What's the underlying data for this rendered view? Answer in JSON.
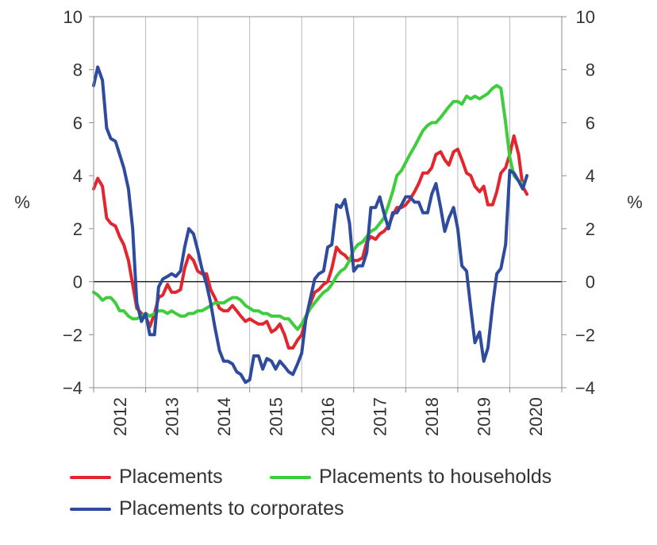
{
  "chart_data": {
    "type": "line",
    "unit_left": "%",
    "unit_right": "%",
    "ylim": [
      -4,
      10
    ],
    "yticks": [
      -4,
      -2,
      0,
      2,
      4,
      6,
      8,
      10
    ],
    "ytick_labels": [
      "−4",
      "−2",
      "0",
      "2",
      "4",
      "6",
      "8",
      "10"
    ],
    "xlim": [
      2011.5,
      2020.5
    ],
    "year_labels": [
      "2012",
      "2013",
      "2014",
      "2015",
      "2016",
      "2017",
      "2018",
      "2019",
      "2020"
    ],
    "grid_vertical": true,
    "zero_line": true,
    "legend_position": "bottom",
    "series": [
      {
        "name": "Placements",
        "color": "#e3262e",
        "points": [
          [
            2011.5,
            3.5
          ],
          [
            2011.58,
            3.9
          ],
          [
            2011.67,
            3.6
          ],
          [
            2011.75,
            2.4
          ],
          [
            2011.83,
            2.2
          ],
          [
            2011.92,
            2.1
          ],
          [
            2012.0,
            1.7
          ],
          [
            2012.08,
            1.4
          ],
          [
            2012.17,
            0.8
          ],
          [
            2012.25,
            -0.1
          ],
          [
            2012.33,
            -1.0
          ],
          [
            2012.42,
            -1.2
          ],
          [
            2012.5,
            -1.3
          ],
          [
            2012.58,
            -1.7
          ],
          [
            2012.67,
            -1.2
          ],
          [
            2012.75,
            -0.6
          ],
          [
            2012.83,
            -0.5
          ],
          [
            2012.92,
            -0.1
          ],
          [
            2013.0,
            -0.4
          ],
          [
            2013.08,
            -0.4
          ],
          [
            2013.17,
            -0.3
          ],
          [
            2013.25,
            0.5
          ],
          [
            2013.33,
            1.0
          ],
          [
            2013.42,
            0.8
          ],
          [
            2013.5,
            0.4
          ],
          [
            2013.58,
            0.3
          ],
          [
            2013.67,
            0.3
          ],
          [
            2013.75,
            -0.3
          ],
          [
            2013.83,
            -0.6
          ],
          [
            2013.92,
            -1.0
          ],
          [
            2014.0,
            -1.1
          ],
          [
            2014.08,
            -1.1
          ],
          [
            2014.17,
            -0.9
          ],
          [
            2014.25,
            -1.1
          ],
          [
            2014.33,
            -1.3
          ],
          [
            2014.42,
            -1.5
          ],
          [
            2014.5,
            -1.4
          ],
          [
            2014.58,
            -1.5
          ],
          [
            2014.67,
            -1.6
          ],
          [
            2014.75,
            -1.6
          ],
          [
            2014.83,
            -1.5
          ],
          [
            2014.92,
            -1.9
          ],
          [
            2015.0,
            -1.8
          ],
          [
            2015.08,
            -1.6
          ],
          [
            2015.17,
            -2.0
          ],
          [
            2015.25,
            -2.5
          ],
          [
            2015.33,
            -2.5
          ],
          [
            2015.42,
            -2.2
          ],
          [
            2015.5,
            -2.0
          ],
          [
            2015.58,
            -1.4
          ],
          [
            2015.67,
            -0.8
          ],
          [
            2015.75,
            -0.4
          ],
          [
            2015.83,
            -0.3
          ],
          [
            2015.92,
            -0.1
          ],
          [
            2016.0,
            0.0
          ],
          [
            2016.08,
            0.5
          ],
          [
            2016.17,
            1.3
          ],
          [
            2016.25,
            1.1
          ],
          [
            2016.33,
            1.0
          ],
          [
            2016.42,
            0.8
          ],
          [
            2016.5,
            0.8
          ],
          [
            2016.58,
            0.8
          ],
          [
            2016.67,
            0.9
          ],
          [
            2016.75,
            1.5
          ],
          [
            2016.83,
            1.7
          ],
          [
            2016.92,
            1.6
          ],
          [
            2017.0,
            1.8
          ],
          [
            2017.08,
            1.9
          ],
          [
            2017.17,
            2.1
          ],
          [
            2017.25,
            2.5
          ],
          [
            2017.33,
            2.8
          ],
          [
            2017.42,
            2.8
          ],
          [
            2017.5,
            2.9
          ],
          [
            2017.58,
            3.1
          ],
          [
            2017.67,
            3.4
          ],
          [
            2017.75,
            3.7
          ],
          [
            2017.83,
            4.1
          ],
          [
            2017.92,
            4.1
          ],
          [
            2018.0,
            4.3
          ],
          [
            2018.08,
            4.8
          ],
          [
            2018.17,
            4.9
          ],
          [
            2018.25,
            4.6
          ],
          [
            2018.33,
            4.4
          ],
          [
            2018.42,
            4.9
          ],
          [
            2018.5,
            5.0
          ],
          [
            2018.58,
            4.6
          ],
          [
            2018.67,
            4.1
          ],
          [
            2018.75,
            4.0
          ],
          [
            2018.83,
            3.6
          ],
          [
            2018.92,
            3.4
          ],
          [
            2019.0,
            3.6
          ],
          [
            2019.08,
            2.9
          ],
          [
            2019.17,
            2.9
          ],
          [
            2019.25,
            3.4
          ],
          [
            2019.33,
            4.1
          ],
          [
            2019.42,
            4.3
          ],
          [
            2019.5,
            4.8
          ],
          [
            2019.58,
            5.5
          ],
          [
            2019.67,
            4.8
          ],
          [
            2019.75,
            3.6
          ],
          [
            2019.83,
            3.3
          ]
        ]
      },
      {
        "name": "Placements to households",
        "color": "#3dcd3d",
        "points": [
          [
            2011.5,
            -0.4
          ],
          [
            2011.58,
            -0.5
          ],
          [
            2011.67,
            -0.7
          ],
          [
            2011.75,
            -0.6
          ],
          [
            2011.83,
            -0.6
          ],
          [
            2011.92,
            -0.8
          ],
          [
            2012.0,
            -1.1
          ],
          [
            2012.08,
            -1.1
          ],
          [
            2012.17,
            -1.3
          ],
          [
            2012.25,
            -1.4
          ],
          [
            2012.33,
            -1.4
          ],
          [
            2012.42,
            -1.3
          ],
          [
            2012.5,
            -1.2
          ],
          [
            2012.58,
            -1.3
          ],
          [
            2012.67,
            -1.2
          ],
          [
            2012.75,
            -1.1
          ],
          [
            2012.83,
            -1.1
          ],
          [
            2012.92,
            -1.2
          ],
          [
            2013.0,
            -1.1
          ],
          [
            2013.08,
            -1.2
          ],
          [
            2013.17,
            -1.3
          ],
          [
            2013.25,
            -1.3
          ],
          [
            2013.33,
            -1.2
          ],
          [
            2013.42,
            -1.2
          ],
          [
            2013.5,
            -1.1
          ],
          [
            2013.58,
            -1.1
          ],
          [
            2013.67,
            -1.0
          ],
          [
            2013.75,
            -0.9
          ],
          [
            2013.83,
            -0.8
          ],
          [
            2013.92,
            -0.8
          ],
          [
            2014.0,
            -0.8
          ],
          [
            2014.08,
            -0.7
          ],
          [
            2014.17,
            -0.6
          ],
          [
            2014.25,
            -0.6
          ],
          [
            2014.33,
            -0.7
          ],
          [
            2014.42,
            -0.9
          ],
          [
            2014.5,
            -1.0
          ],
          [
            2014.58,
            -1.1
          ],
          [
            2014.67,
            -1.1
          ],
          [
            2014.75,
            -1.2
          ],
          [
            2014.83,
            -1.2
          ],
          [
            2014.92,
            -1.3
          ],
          [
            2015.0,
            -1.3
          ],
          [
            2015.08,
            -1.3
          ],
          [
            2015.17,
            -1.4
          ],
          [
            2015.25,
            -1.4
          ],
          [
            2015.33,
            -1.6
          ],
          [
            2015.42,
            -1.8
          ],
          [
            2015.5,
            -1.6
          ],
          [
            2015.58,
            -1.3
          ],
          [
            2015.67,
            -1.0
          ],
          [
            2015.75,
            -0.8
          ],
          [
            2015.83,
            -0.6
          ],
          [
            2015.92,
            -0.4
          ],
          [
            2016.0,
            -0.3
          ],
          [
            2016.08,
            -0.1
          ],
          [
            2016.17,
            0.2
          ],
          [
            2016.25,
            0.4
          ],
          [
            2016.33,
            0.5
          ],
          [
            2016.42,
            0.8
          ],
          [
            2016.5,
            1.2
          ],
          [
            2016.58,
            1.4
          ],
          [
            2016.67,
            1.5
          ],
          [
            2016.75,
            1.7
          ],
          [
            2016.83,
            1.9
          ],
          [
            2016.92,
            2.0
          ],
          [
            2017.0,
            2.2
          ],
          [
            2017.08,
            2.4
          ],
          [
            2017.17,
            2.9
          ],
          [
            2017.25,
            3.4
          ],
          [
            2017.33,
            4.0
          ],
          [
            2017.42,
            4.2
          ],
          [
            2017.5,
            4.5
          ],
          [
            2017.58,
            4.8
          ],
          [
            2017.67,
            5.1
          ],
          [
            2017.75,
            5.4
          ],
          [
            2017.83,
            5.7
          ],
          [
            2017.92,
            5.9
          ],
          [
            2018.0,
            6.0
          ],
          [
            2018.08,
            6.0
          ],
          [
            2018.17,
            6.2
          ],
          [
            2018.25,
            6.4
          ],
          [
            2018.33,
            6.6
          ],
          [
            2018.42,
            6.8
          ],
          [
            2018.5,
            6.8
          ],
          [
            2018.58,
            6.7
          ],
          [
            2018.67,
            7.0
          ],
          [
            2018.75,
            6.9
          ],
          [
            2018.83,
            7.0
          ],
          [
            2018.92,
            6.9
          ],
          [
            2019.0,
            7.0
          ],
          [
            2019.08,
            7.1
          ],
          [
            2019.17,
            7.3
          ],
          [
            2019.25,
            7.4
          ],
          [
            2019.33,
            7.3
          ],
          [
            2019.42,
            6.0
          ],
          [
            2019.5,
            4.7
          ],
          [
            2019.58,
            4.0
          ],
          [
            2019.67,
            3.8
          ],
          [
            2019.75,
            3.7
          ]
        ]
      },
      {
        "name": "Placements to corporates",
        "color": "#2e4b9e",
        "points": [
          [
            2011.5,
            7.4
          ],
          [
            2011.58,
            8.1
          ],
          [
            2011.67,
            7.6
          ],
          [
            2011.75,
            5.8
          ],
          [
            2011.83,
            5.4
          ],
          [
            2011.92,
            5.3
          ],
          [
            2012.0,
            4.8
          ],
          [
            2012.08,
            4.3
          ],
          [
            2012.17,
            3.5
          ],
          [
            2012.25,
            2.0
          ],
          [
            2012.33,
            -0.8
          ],
          [
            2012.42,
            -1.5
          ],
          [
            2012.5,
            -1.2
          ],
          [
            2012.58,
            -2.0
          ],
          [
            2012.67,
            -2.0
          ],
          [
            2012.75,
            -0.2
          ],
          [
            2012.83,
            0.1
          ],
          [
            2012.92,
            0.2
          ],
          [
            2013.0,
            0.3
          ],
          [
            2013.08,
            0.2
          ],
          [
            2013.17,
            0.4
          ],
          [
            2013.25,
            1.3
          ],
          [
            2013.33,
            2.0
          ],
          [
            2013.42,
            1.8
          ],
          [
            2013.5,
            1.2
          ],
          [
            2013.58,
            0.5
          ],
          [
            2013.67,
            -0.1
          ],
          [
            2013.75,
            -0.8
          ],
          [
            2013.83,
            -1.7
          ],
          [
            2013.92,
            -2.6
          ],
          [
            2014.0,
            -3.0
          ],
          [
            2014.08,
            -3.0
          ],
          [
            2014.17,
            -3.1
          ],
          [
            2014.25,
            -3.4
          ],
          [
            2014.33,
            -3.5
          ],
          [
            2014.42,
            -3.8
          ],
          [
            2014.5,
            -3.7
          ],
          [
            2014.58,
            -2.8
          ],
          [
            2014.67,
            -2.8
          ],
          [
            2014.75,
            -3.3
          ],
          [
            2014.83,
            -2.9
          ],
          [
            2014.92,
            -3.0
          ],
          [
            2015.0,
            -3.3
          ],
          [
            2015.08,
            -3.0
          ],
          [
            2015.17,
            -3.2
          ],
          [
            2015.25,
            -3.4
          ],
          [
            2015.33,
            -3.5
          ],
          [
            2015.42,
            -3.1
          ],
          [
            2015.5,
            -2.7
          ],
          [
            2015.58,
            -1.4
          ],
          [
            2015.67,
            -0.6
          ],
          [
            2015.75,
            0.1
          ],
          [
            2015.83,
            0.3
          ],
          [
            2015.92,
            0.4
          ],
          [
            2016.0,
            1.3
          ],
          [
            2016.08,
            1.4
          ],
          [
            2016.17,
            2.9
          ],
          [
            2016.25,
            2.8
          ],
          [
            2016.33,
            3.1
          ],
          [
            2016.42,
            2.2
          ],
          [
            2016.5,
            0.4
          ],
          [
            2016.58,
            0.6
          ],
          [
            2016.67,
            0.6
          ],
          [
            2016.75,
            1.1
          ],
          [
            2016.83,
            2.8
          ],
          [
            2016.92,
            2.8
          ],
          [
            2017.0,
            3.2
          ],
          [
            2017.08,
            2.6
          ],
          [
            2017.17,
            2.0
          ],
          [
            2017.25,
            2.6
          ],
          [
            2017.33,
            2.6
          ],
          [
            2017.42,
            2.9
          ],
          [
            2017.5,
            3.2
          ],
          [
            2017.58,
            3.2
          ],
          [
            2017.67,
            3.0
          ],
          [
            2017.75,
            3.0
          ],
          [
            2017.83,
            2.6
          ],
          [
            2017.92,
            2.6
          ],
          [
            2018.0,
            3.3
          ],
          [
            2018.08,
            3.7
          ],
          [
            2018.17,
            2.8
          ],
          [
            2018.25,
            1.9
          ],
          [
            2018.33,
            2.4
          ],
          [
            2018.42,
            2.8
          ],
          [
            2018.5,
            2.0
          ],
          [
            2018.58,
            0.6
          ],
          [
            2018.67,
            0.4
          ],
          [
            2018.75,
            -1.0
          ],
          [
            2018.83,
            -2.3
          ],
          [
            2018.92,
            -1.9
          ],
          [
            2019.0,
            -3.0
          ],
          [
            2019.08,
            -2.5
          ],
          [
            2019.17,
            -0.9
          ],
          [
            2019.25,
            0.3
          ],
          [
            2019.33,
            0.5
          ],
          [
            2019.42,
            1.4
          ],
          [
            2019.5,
            4.2
          ],
          [
            2019.58,
            4.1
          ],
          [
            2019.67,
            3.8
          ],
          [
            2019.75,
            3.5
          ],
          [
            2019.83,
            4.0
          ]
        ]
      }
    ]
  }
}
